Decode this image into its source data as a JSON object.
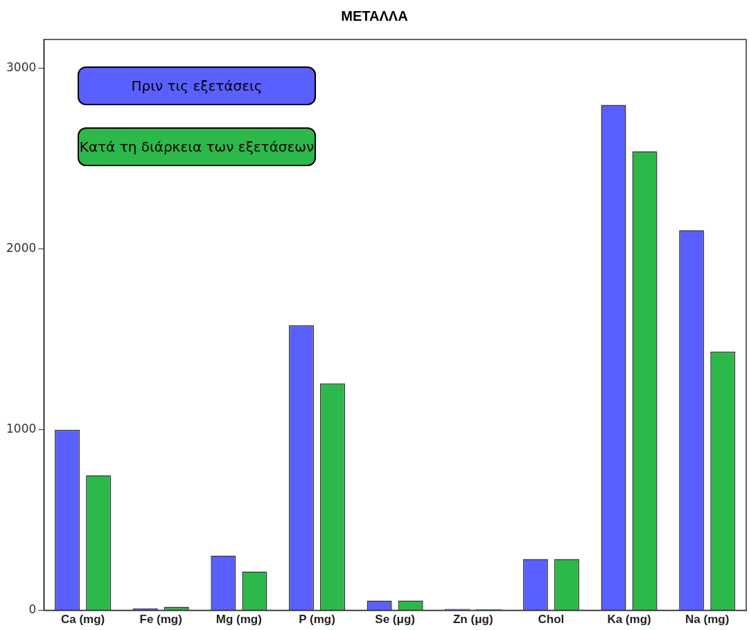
{
  "chart_data": {
    "type": "bar",
    "title": "ΜΕΤΑΛΛΑ",
    "categories": [
      "Ca (mg)",
      "Fe (mg)",
      "Mg (mg)",
      "P (mg)",
      "Se (μg)",
      "Zn (μg)",
      "Chol",
      "Ka (mg)",
      "Na (mg)"
    ],
    "series": [
      {
        "name": "Πριν τις εξετάσεις",
        "color": "#5a5fff",
        "values": [
          1000,
          12,
          303,
          1578,
          54,
          8,
          284,
          2798,
          2104
        ]
      },
      {
        "name": "Κατά τη διάρκεια των εξετάσεων",
        "color": "#2db84a",
        "values": [
          748,
          20,
          215,
          1255,
          54,
          6,
          284,
          2541,
          1432
        ]
      }
    ],
    "ylim": [
      0,
      3160
    ],
    "yticks": [
      0,
      1000,
      2000,
      3000
    ],
    "grid": false,
    "legend": "top left"
  }
}
